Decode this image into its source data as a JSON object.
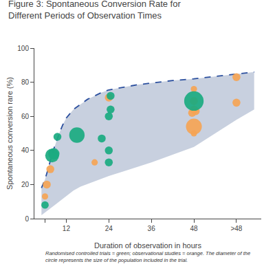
{
  "chart_data": {
    "type": "scatter",
    "title": "Figure 3: Spontaneous Conversion Rate for\nDifferent Periods of Observation Times",
    "x_label": "Duration of observation in hours",
    "y_label": "Spontaneous conversion rare (%)",
    "annotations": [
      "Randomised controlled trials = green; observational studies = orange. The diameter of the\ncircle represents the size of the population included in the trial."
    ],
    "xlim": [
      3,
      67
    ],
    "xticks": [
      {
        "value": 6,
        "label": null
      },
      12,
      24,
      36,
      48,
      {
        "value": 60,
        "label": ">48"
      }
    ],
    "ylim": [
      0,
      100
    ],
    "yticks": [
      0,
      20,
      40,
      60,
      80,
      100
    ],
    "grid": false,
    "series": [
      {
        "type": "band",
        "color": "#c8d0df",
        "x": [
          5,
          6,
          7,
          8,
          9,
          10,
          11,
          12,
          14,
          16,
          18,
          20,
          22,
          24,
          28,
          32,
          36,
          42,
          48,
          54,
          60,
          65
        ],
        "lower": [
          2,
          3.5,
          5,
          6.666666666666667,
          8.333333333333334,
          10,
          11.6,
          13.2,
          16.4,
          18.77777777777778,
          20.333333333333332,
          21.88888888888889,
          23.444444444444443,
          25,
          27.666666666666668,
          30.333333333333332,
          33,
          37.5,
          42,
          50,
          58,
          64
        ],
        "values": [
          18,
          23,
          30,
          38,
          44,
          50,
          55,
          59,
          64,
          67,
          70,
          72,
          74,
          75.5,
          77,
          78.5,
          79.5,
          81,
          82,
          83.5,
          85,
          86
        ]
      },
      {
        "type": "line",
        "line_style": "dashed",
        "color": "#2b4f9e",
        "x": [
          5,
          6,
          7,
          8,
          9,
          10,
          11,
          12,
          14,
          16,
          18,
          20,
          22,
          24,
          28,
          32,
          36,
          42,
          48,
          54,
          60,
          65
        ],
        "values": [
          18,
          23,
          30,
          38,
          44,
          50,
          55,
          59,
          64,
          67,
          70,
          72,
          74,
          75.5,
          77,
          78.5,
          79.5,
          81,
          82,
          83.5,
          85,
          86
        ]
      },
      {
        "type": "scatter",
        "marker": "circle",
        "color": "#f5a455",
        "x": [
          6,
          6.5,
          7.5,
          20,
          24,
          48,
          48,
          47.5,
          48.5,
          48,
          48,
          48,
          60,
          60
        ],
        "values": [
          13,
          20,
          29,
          33,
          71,
          50,
          54,
          62,
          63,
          64,
          69,
          76,
          68,
          83
        ],
        "sizes": [
          25,
          40,
          40,
          25,
          40,
          25,
          160,
          40,
          40,
          40,
          40,
          25,
          40,
          40
        ]
      },
      {
        "type": "scatter",
        "marker": "circle",
        "color": "#1aaa80",
        "x": [
          6,
          8,
          8.5,
          9.5,
          15,
          22,
          24,
          24,
          24.5,
          24,
          24.5,
          48
        ],
        "values": [
          8,
          37,
          38,
          48,
          49,
          47,
          40,
          60,
          64,
          33,
          72,
          69
        ],
        "sizes": [
          35,
          120,
          80,
          40,
          150,
          40,
          40,
          40,
          40,
          40,
          40,
          240
        ]
      }
    ]
  }
}
